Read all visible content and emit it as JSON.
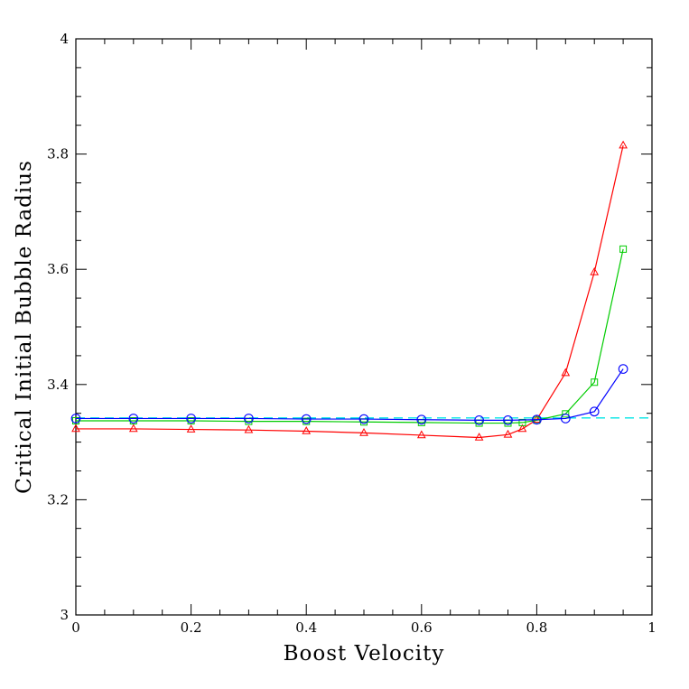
{
  "chart_data": {
    "type": "line",
    "title": "",
    "xlabel": "Boost Velocity",
    "ylabel": "Critical Initial Bubble Radius",
    "xlim": [
      0,
      1
    ],
    "ylim": [
      3,
      4
    ],
    "x_ticks": [
      0,
      0.2,
      0.4,
      0.6,
      0.8,
      1
    ],
    "y_ticks": [
      3,
      3.2,
      3.4,
      3.6,
      3.8,
      4
    ],
    "x_tick_labels": [
      "0",
      "0.2",
      "0.4",
      "0.6",
      "0.8",
      "1"
    ],
    "y_tick_labels": [
      "3",
      "3.2",
      "3.4",
      "3.6",
      "3.8",
      "4"
    ],
    "grid": false,
    "legend": "none",
    "reference_line": {
      "y": 3.342,
      "style": "dashed",
      "color": "#00e5e5"
    },
    "series": [
      {
        "color": "#ff0000",
        "marker": "triangle",
        "x": [
          0,
          0.1,
          0.2,
          0.3,
          0.4,
          0.5,
          0.6,
          0.7,
          0.75,
          0.775,
          0.8,
          0.85,
          0.9,
          0.95
        ],
        "y": [
          3.323,
          3.323,
          3.322,
          3.321,
          3.319,
          3.316,
          3.312,
          3.308,
          3.313,
          3.323,
          3.339,
          3.42,
          3.595,
          3.815
        ]
      },
      {
        "color": "#00cc00",
        "marker": "square",
        "x": [
          0,
          0.1,
          0.2,
          0.3,
          0.4,
          0.5,
          0.6,
          0.7,
          0.75,
          0.775,
          0.8,
          0.85,
          0.9,
          0.95
        ],
        "y": [
          3.337,
          3.337,
          3.337,
          3.336,
          3.336,
          3.335,
          3.334,
          3.333,
          3.333,
          3.334,
          3.338,
          3.349,
          3.404,
          3.635
        ]
      },
      {
        "color": "#0000ff",
        "marker": "circle",
        "x": [
          0,
          0.1,
          0.2,
          0.3,
          0.4,
          0.5,
          0.6,
          0.7,
          0.75,
          0.8,
          0.85,
          0.9,
          0.95
        ],
        "y": [
          3.341,
          3.341,
          3.341,
          3.341,
          3.34,
          3.34,
          3.339,
          3.338,
          3.338,
          3.339,
          3.341,
          3.353,
          3.427
        ]
      }
    ]
  }
}
